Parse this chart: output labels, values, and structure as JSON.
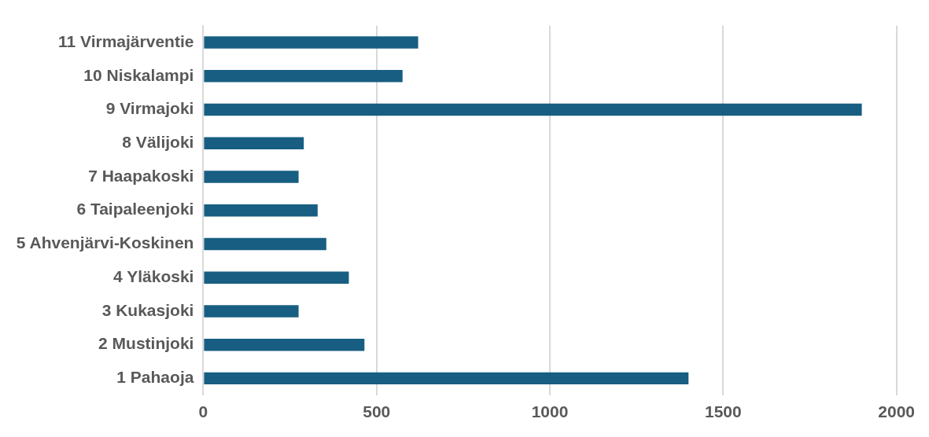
{
  "chart_data": {
    "type": "bar",
    "orientation": "horizontal",
    "categories": [
      "11 Virmajärventie",
      "10 Niskalampi",
      "9 Virmajoki",
      "8 Välijoki",
      "7 Haapakoski",
      "6 Taipaleenjoki",
      "5 Ahvenjärvi-Koskinen",
      "4 Yläkoski",
      "3 Kukasjoki",
      "2 Mustinjoki",
      "1 Pahaoja"
    ],
    "values": [
      620,
      575,
      1900,
      290,
      275,
      330,
      355,
      420,
      275,
      465,
      1400
    ],
    "color": "#175e82",
    "xlim": [
      0,
      2000
    ],
    "xticks": [
      0,
      500,
      1000,
      1500,
      2000
    ],
    "grid": "x",
    "legend": false
  }
}
